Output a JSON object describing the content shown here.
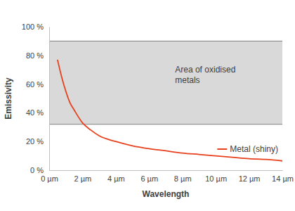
{
  "chart_data": {
    "type": "line",
    "x_label": "Wavelength",
    "y_label": "Emissivity",
    "x": [
      0.5,
      0.75,
      1,
      1.25,
      1.5,
      2,
      2.5,
      3,
      4,
      5,
      6,
      7,
      8,
      9,
      10,
      11,
      12,
      13,
      14
    ],
    "series": [
      {
        "name": "Metal (shiny)",
        "color": "#e8401c",
        "values": [
          77,
          65,
          55,
          47,
          42,
          33,
          28,
          24,
          20,
          17,
          15,
          13.5,
          12,
          11,
          10,
          9,
          8,
          7.5,
          6.5
        ]
      }
    ],
    "xlim": [
      0,
      14
    ],
    "ylim": [
      0,
      100
    ],
    "xticks": [
      {
        "value": 0,
        "label": "0 µm"
      },
      {
        "value": 2,
        "label": "2 µm"
      },
      {
        "value": 4,
        "label": "4 µm"
      },
      {
        "value": 6,
        "label": "6 µm"
      },
      {
        "value": 8,
        "label": "8 µm"
      },
      {
        "value": 10,
        "label": "10 µm"
      },
      {
        "value": 12,
        "label": "12 µm"
      },
      {
        "value": 14,
        "label": "14 µm"
      }
    ],
    "yticks": [
      {
        "value": 0,
        "label": "0 %"
      },
      {
        "value": 20,
        "label": "20 %"
      },
      {
        "value": 40,
        "label": "40 %"
      },
      {
        "value": 60,
        "label": "60 %"
      },
      {
        "value": 80,
        "label": "80 %"
      },
      {
        "value": 100,
        "label": "100 %"
      }
    ],
    "annotations": [
      {
        "text": [
          "Area of oxidised",
          "metals"
        ],
        "y_range": [
          32,
          90
        ]
      }
    ],
    "legend": "lower right",
    "grid": false
  }
}
